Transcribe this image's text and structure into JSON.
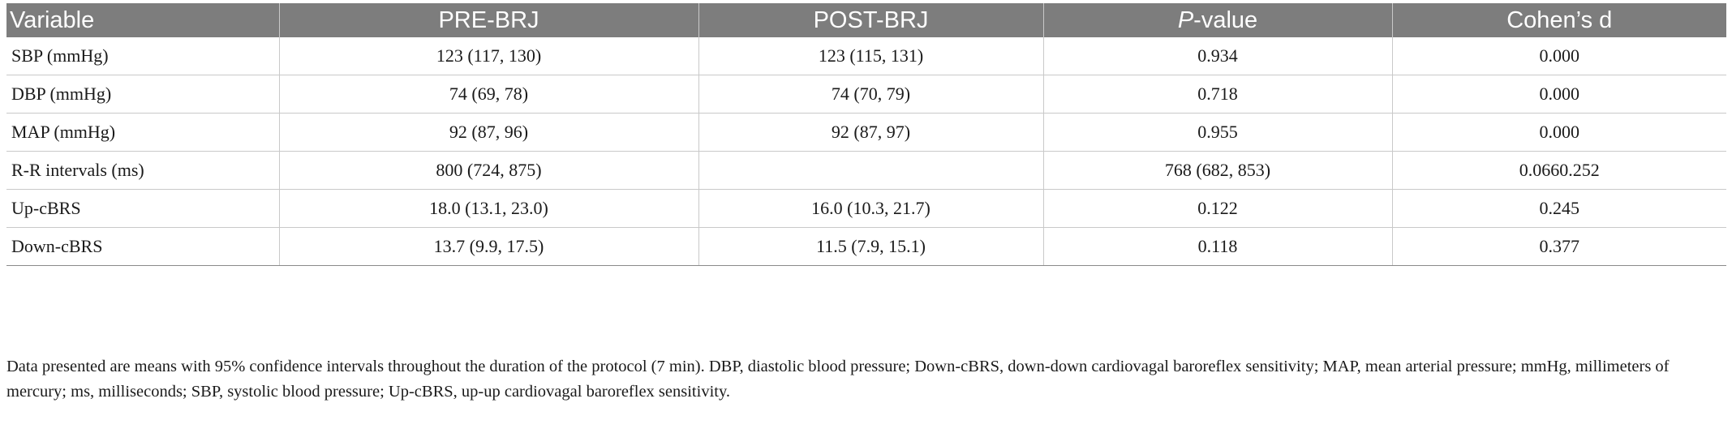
{
  "table": {
    "headers": {
      "variable": "Variable",
      "pre": "PRE-BRJ",
      "post": "POST-BRJ",
      "pvalue_p": "P",
      "pvalue_rest": "-value",
      "cohens": "Cohen’s d"
    },
    "rows": [
      {
        "variable": "SBP (mmHg)",
        "pre": "123 (117, 130)",
        "post": "123 (115, 131)",
        "pvalue": "0.934",
        "cohens": "0.000"
      },
      {
        "variable": "DBP (mmHg)",
        "pre": "74 (69, 78)",
        "post": "74 (70, 79)",
        "pvalue": "0.718",
        "cohens": "0.000"
      },
      {
        "variable": "MAP (mmHg)",
        "pre": "92 (87, 96)",
        "post": "92 (87, 97)",
        "pvalue": "0.955",
        "cohens": "0.000"
      },
      {
        "variable": "R-R intervals (ms)",
        "pre": "800 (724, 875)",
        "post": "",
        "pvalue": "768 (682, 853)",
        "cohens": "0.0660.252"
      },
      {
        "variable": "Up-cBRS",
        "pre": "18.0 (13.1, 23.0)",
        "post": "16.0 (10.3, 21.7)",
        "pvalue": "0.122",
        "cohens": "0.245"
      },
      {
        "variable": "Down-cBRS",
        "pre": "13.7 (9.9, 17.5)",
        "post": "11.5 (7.9, 15.1)",
        "pvalue": "0.118",
        "cohens": "0.377"
      }
    ]
  },
  "footnote": "Data presented are means with 95% confidence intervals throughout the duration of the protocol (7 min). DBP, diastolic blood pressure; Down-cBRS, down-down cardiovagal baroreflex sensitivity; MAP, mean arterial pressure; mmHg, millimeters of mercury; ms, milliseconds; SBP, systolic blood pressure; Up-cBRS, up-up cardiovagal baroreflex sensitivity.",
  "colors": {
    "header_bg": "#7d7d7d",
    "header_text": "#ffffff",
    "rule": "#c9c9c9"
  }
}
